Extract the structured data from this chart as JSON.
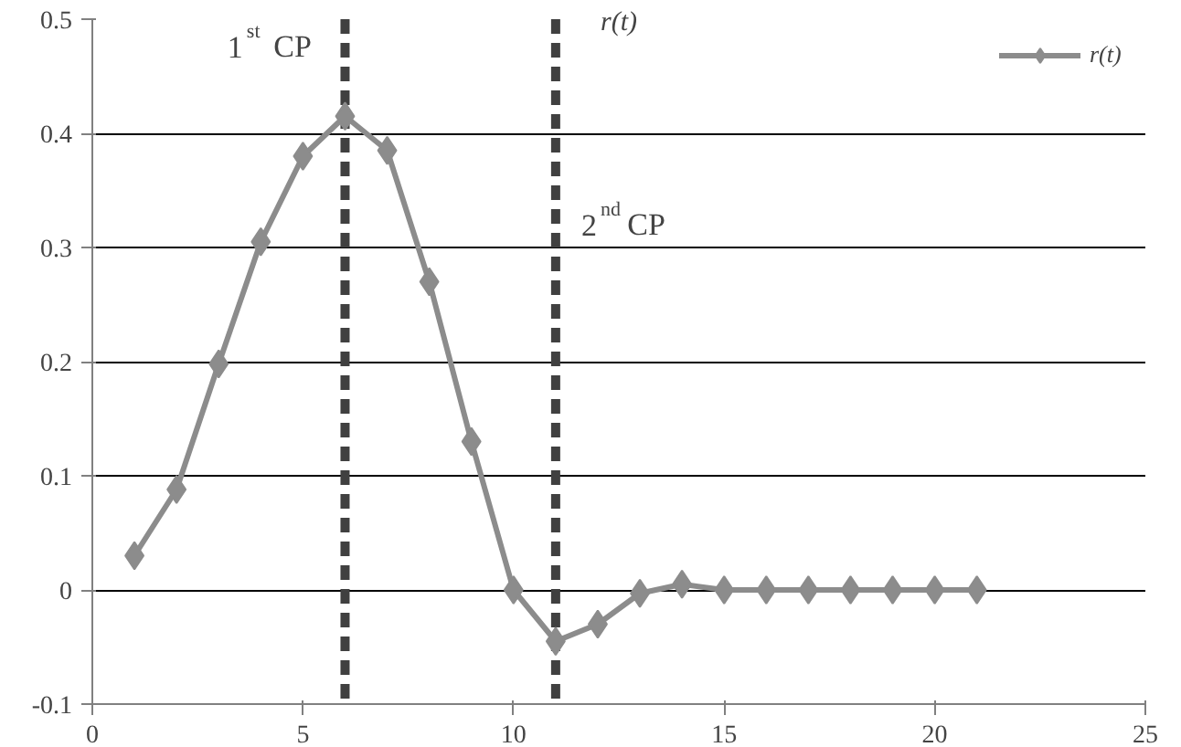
{
  "chart_data": {
    "type": "line",
    "title": "r(t)",
    "x": [
      1,
      2,
      3,
      4,
      5,
      6,
      7,
      8,
      9,
      10,
      11,
      12,
      13,
      14,
      15,
      16,
      17,
      18,
      19,
      20,
      21
    ],
    "series": [
      {
        "name": "r(t)",
        "color": "#8c8c8c",
        "values": [
          0.03,
          0.088,
          0.198,
          0.305,
          0.38,
          0.415,
          0.385,
          0.27,
          0.13,
          0.0,
          -0.045,
          -0.03,
          -0.003,
          0.005,
          0,
          0,
          0,
          0,
          0,
          0,
          0
        ]
      }
    ],
    "xlim": [
      0,
      25
    ],
    "xticks": [
      0,
      5,
      10,
      15,
      20,
      25
    ],
    "ylim": [
      -0.1,
      0.5
    ],
    "yticks": [
      {
        "value": -0.1,
        "label": "-0.1"
      },
      0,
      0.1,
      0.2,
      0.3,
      0.4,
      0.5
    ],
    "grid": "y",
    "legend": "top right",
    "marker": "diamond",
    "line_style": "solid",
    "ref_lines": [
      {
        "axis": "x",
        "value": 6,
        "color": "#404040",
        "line_style": "dashed"
      },
      {
        "axis": "x",
        "value": 11,
        "color": "#404040",
        "line_style": "dashed"
      }
    ],
    "annotations": [
      "1$^{st}$ CP",
      "2$^{nd}$ CP"
    ]
  }
}
